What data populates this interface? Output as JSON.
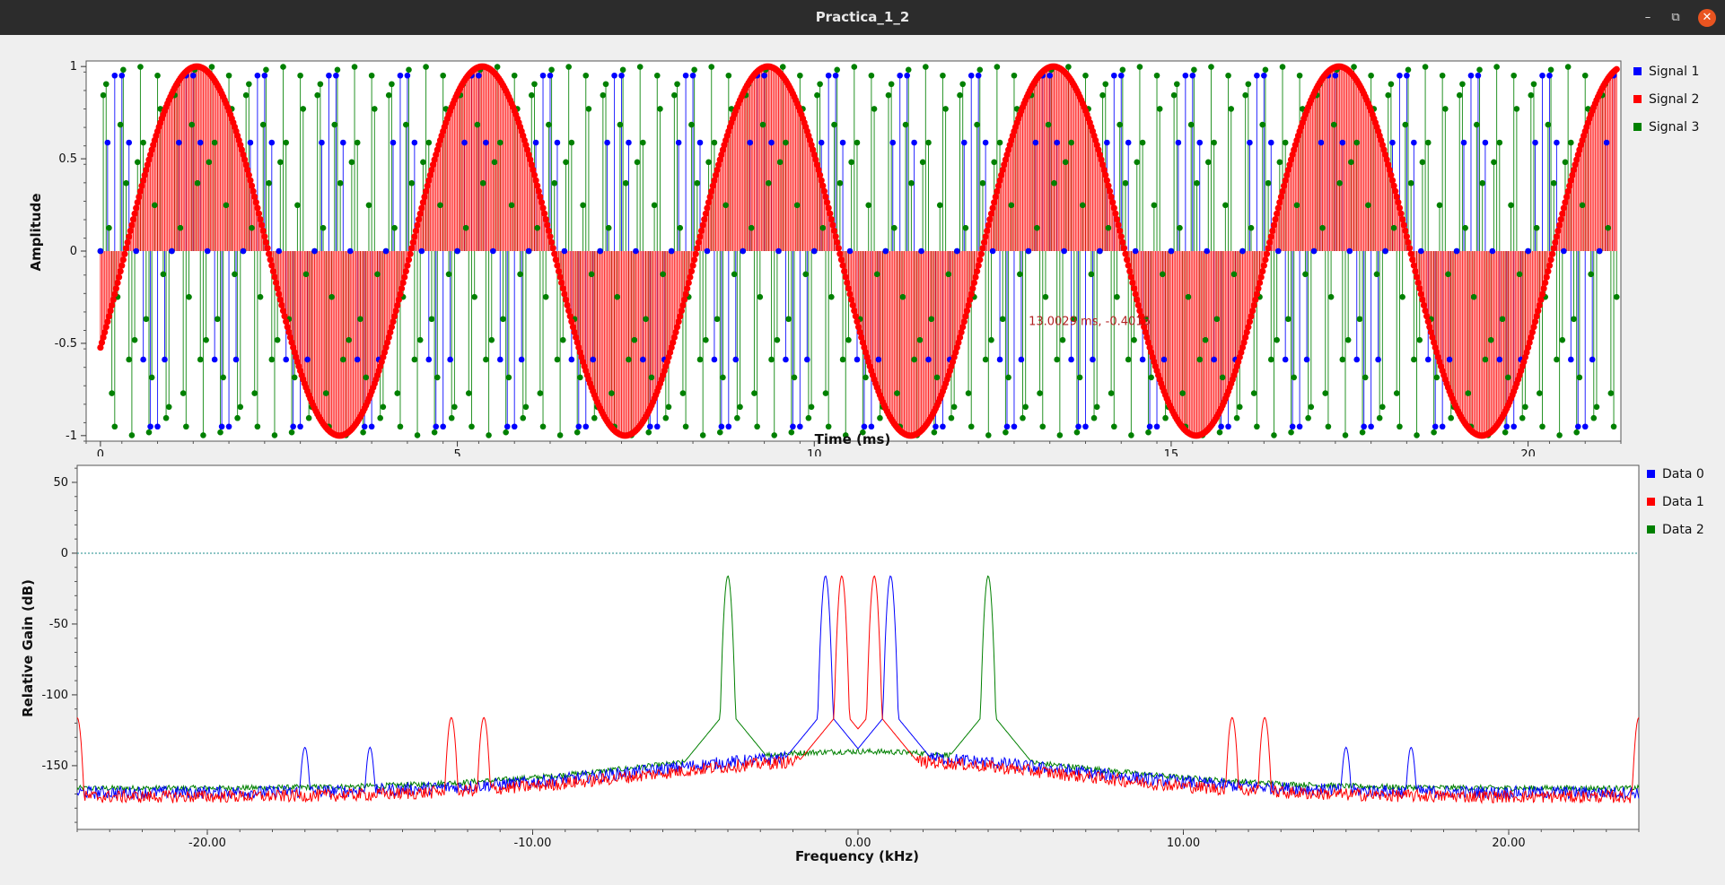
{
  "window": {
    "title": "Practica_1_2",
    "minimize_icon": "minimize-icon",
    "maximize_icon": "maximize-icon",
    "close_icon": "close-icon"
  },
  "chart_data": [
    {
      "type": "line",
      "title": "",
      "xlabel": "Time (ms)",
      "ylabel": "Amplitude",
      "xlim": [
        -0.2,
        21.3
      ],
      "ylim": [
        -1.03,
        1.03
      ],
      "x_ticks": [
        "0",
        "5",
        "10",
        "15",
        "20"
      ],
      "x_tick_values": [
        0,
        5,
        10,
        15,
        20
      ],
      "y_ticks": [
        "1",
        "0.5",
        "0",
        "-0.5",
        "-1"
      ],
      "y_tick_values": [
        1,
        0.5,
        0,
        -0.5,
        -1
      ],
      "legend_position": "right",
      "grid": false,
      "style": "stem with markers",
      "series": [
        {
          "name": "Signal 1",
          "color": "#0000ff",
          "waveform": "sine",
          "frequency_khz": 1.0,
          "amplitude": 1,
          "sample_step_ms": 0.1
        },
        {
          "name": "Signal 2",
          "color": "#ff0000",
          "waveform": "sine",
          "frequency_khz": 0.25,
          "amplitude": 1,
          "sample_step_ms": 0.02
        },
        {
          "name": "Signal 3",
          "color": "#008000",
          "waveform": "sine",
          "frequency_khz": 4.0,
          "amplitude": 1,
          "sample_step_ms": 0.04
        }
      ],
      "annotation": {
        "text": "13.0029 ms, -0.4015",
        "x": 13.0029,
        "y": -0.4015,
        "color": "#b22222"
      }
    },
    {
      "type": "line",
      "title": "",
      "xlabel": "Frequency (kHz)",
      "ylabel": "Relative Gain (dB)",
      "xlim": [
        -24.0,
        24.0
      ],
      "ylim": [
        -195,
        62
      ],
      "x_ticks": [
        "-20.00",
        "-10.00",
        "0.00",
        "10.00",
        "20.00"
      ],
      "x_tick_values": [
        -20,
        -10,
        0,
        10,
        20
      ],
      "y_ticks": [
        "50",
        "0",
        "-50",
        "-100",
        "-150"
      ],
      "y_tick_values": [
        50,
        0,
        -50,
        -100,
        -150
      ],
      "reference_line_db": 0,
      "legend_position": "right",
      "grid": false,
      "series": [
        {
          "name": "Data 0",
          "color": "#0000ff",
          "peaks_khz": [
            -1.0,
            1.0
          ],
          "peak_db": -16,
          "spurs_khz": [
            -17.0,
            -15.0,
            15.0,
            17.0
          ],
          "spur_db": -137,
          "noise_floor_db": -169
        },
        {
          "name": "Data 1",
          "color": "#ff0000",
          "peaks_khz": [
            -0.5,
            0.5
          ],
          "peak_db": -16,
          "spurs_khz": [
            -24.0,
            -12.5,
            -11.5,
            11.5,
            12.5,
            24.0
          ],
          "spur_db": -116,
          "noise_floor_db": -172
        },
        {
          "name": "Data 2",
          "color": "#008000",
          "peaks_khz": [
            -4.0,
            4.0
          ],
          "peak_db": -16,
          "noise_floor_db": -166
        }
      ]
    }
  ]
}
